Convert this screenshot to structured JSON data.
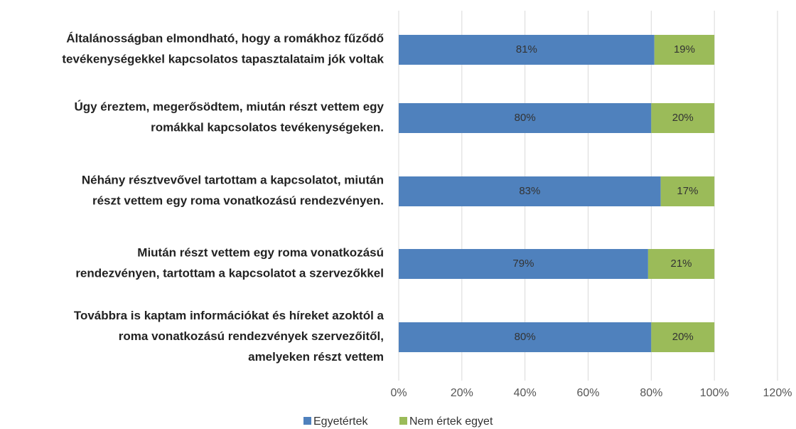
{
  "chart_data": {
    "type": "stacked_bar_horizontal",
    "categories": [
      "Általánosságban elmondható, hogy a romákhoz fűződő\ntevékenységekkel kapcsolatos tapasztalataim jók voltak",
      "Úgy éreztem, megerősödtem, miután részt vettem egy\nromákkal kapcsolatos tevékenységeken.",
      "Néhány résztvevővel tartottam a kapcsolatot, miután\nrészt vettem egy roma vonatkozású rendezvényen.",
      "Miután részt vettem egy roma vonatkozású\nrendezvényen, tartottam a kapcsolatot a szervezőkkel",
      "Továbbra is kaptam információkat és híreket azoktól a\nroma vonatkozású rendezvények szervezőitől,\namelyeken részt vettem"
    ],
    "series": [
      {
        "name": "Egyetértek",
        "color": "#4f81bd",
        "values": [
          81,
          80,
          83,
          79,
          80
        ],
        "value_labels": [
          "81%",
          "80%",
          "83%",
          "79%",
          "80%"
        ]
      },
      {
        "name": "Nem értek egyet",
        "color": "#9bbb59",
        "values": [
          19,
          20,
          17,
          21,
          20
        ],
        "value_labels": [
          "19%",
          "20%",
          "17%",
          "21%",
          "20%"
        ]
      }
    ],
    "xlim": [
      0,
      120
    ],
    "xticks": [
      {
        "value": 0,
        "label": "0%"
      },
      {
        "value": 20,
        "label": "20%"
      },
      {
        "value": 40,
        "label": "40%"
      },
      {
        "value": 60,
        "label": "60%"
      },
      {
        "value": 80,
        "label": "80%"
      },
      {
        "value": 100,
        "label": "100%"
      },
      {
        "value": 120,
        "label": "120%"
      }
    ],
    "grid": true,
    "legend": "bottom"
  }
}
